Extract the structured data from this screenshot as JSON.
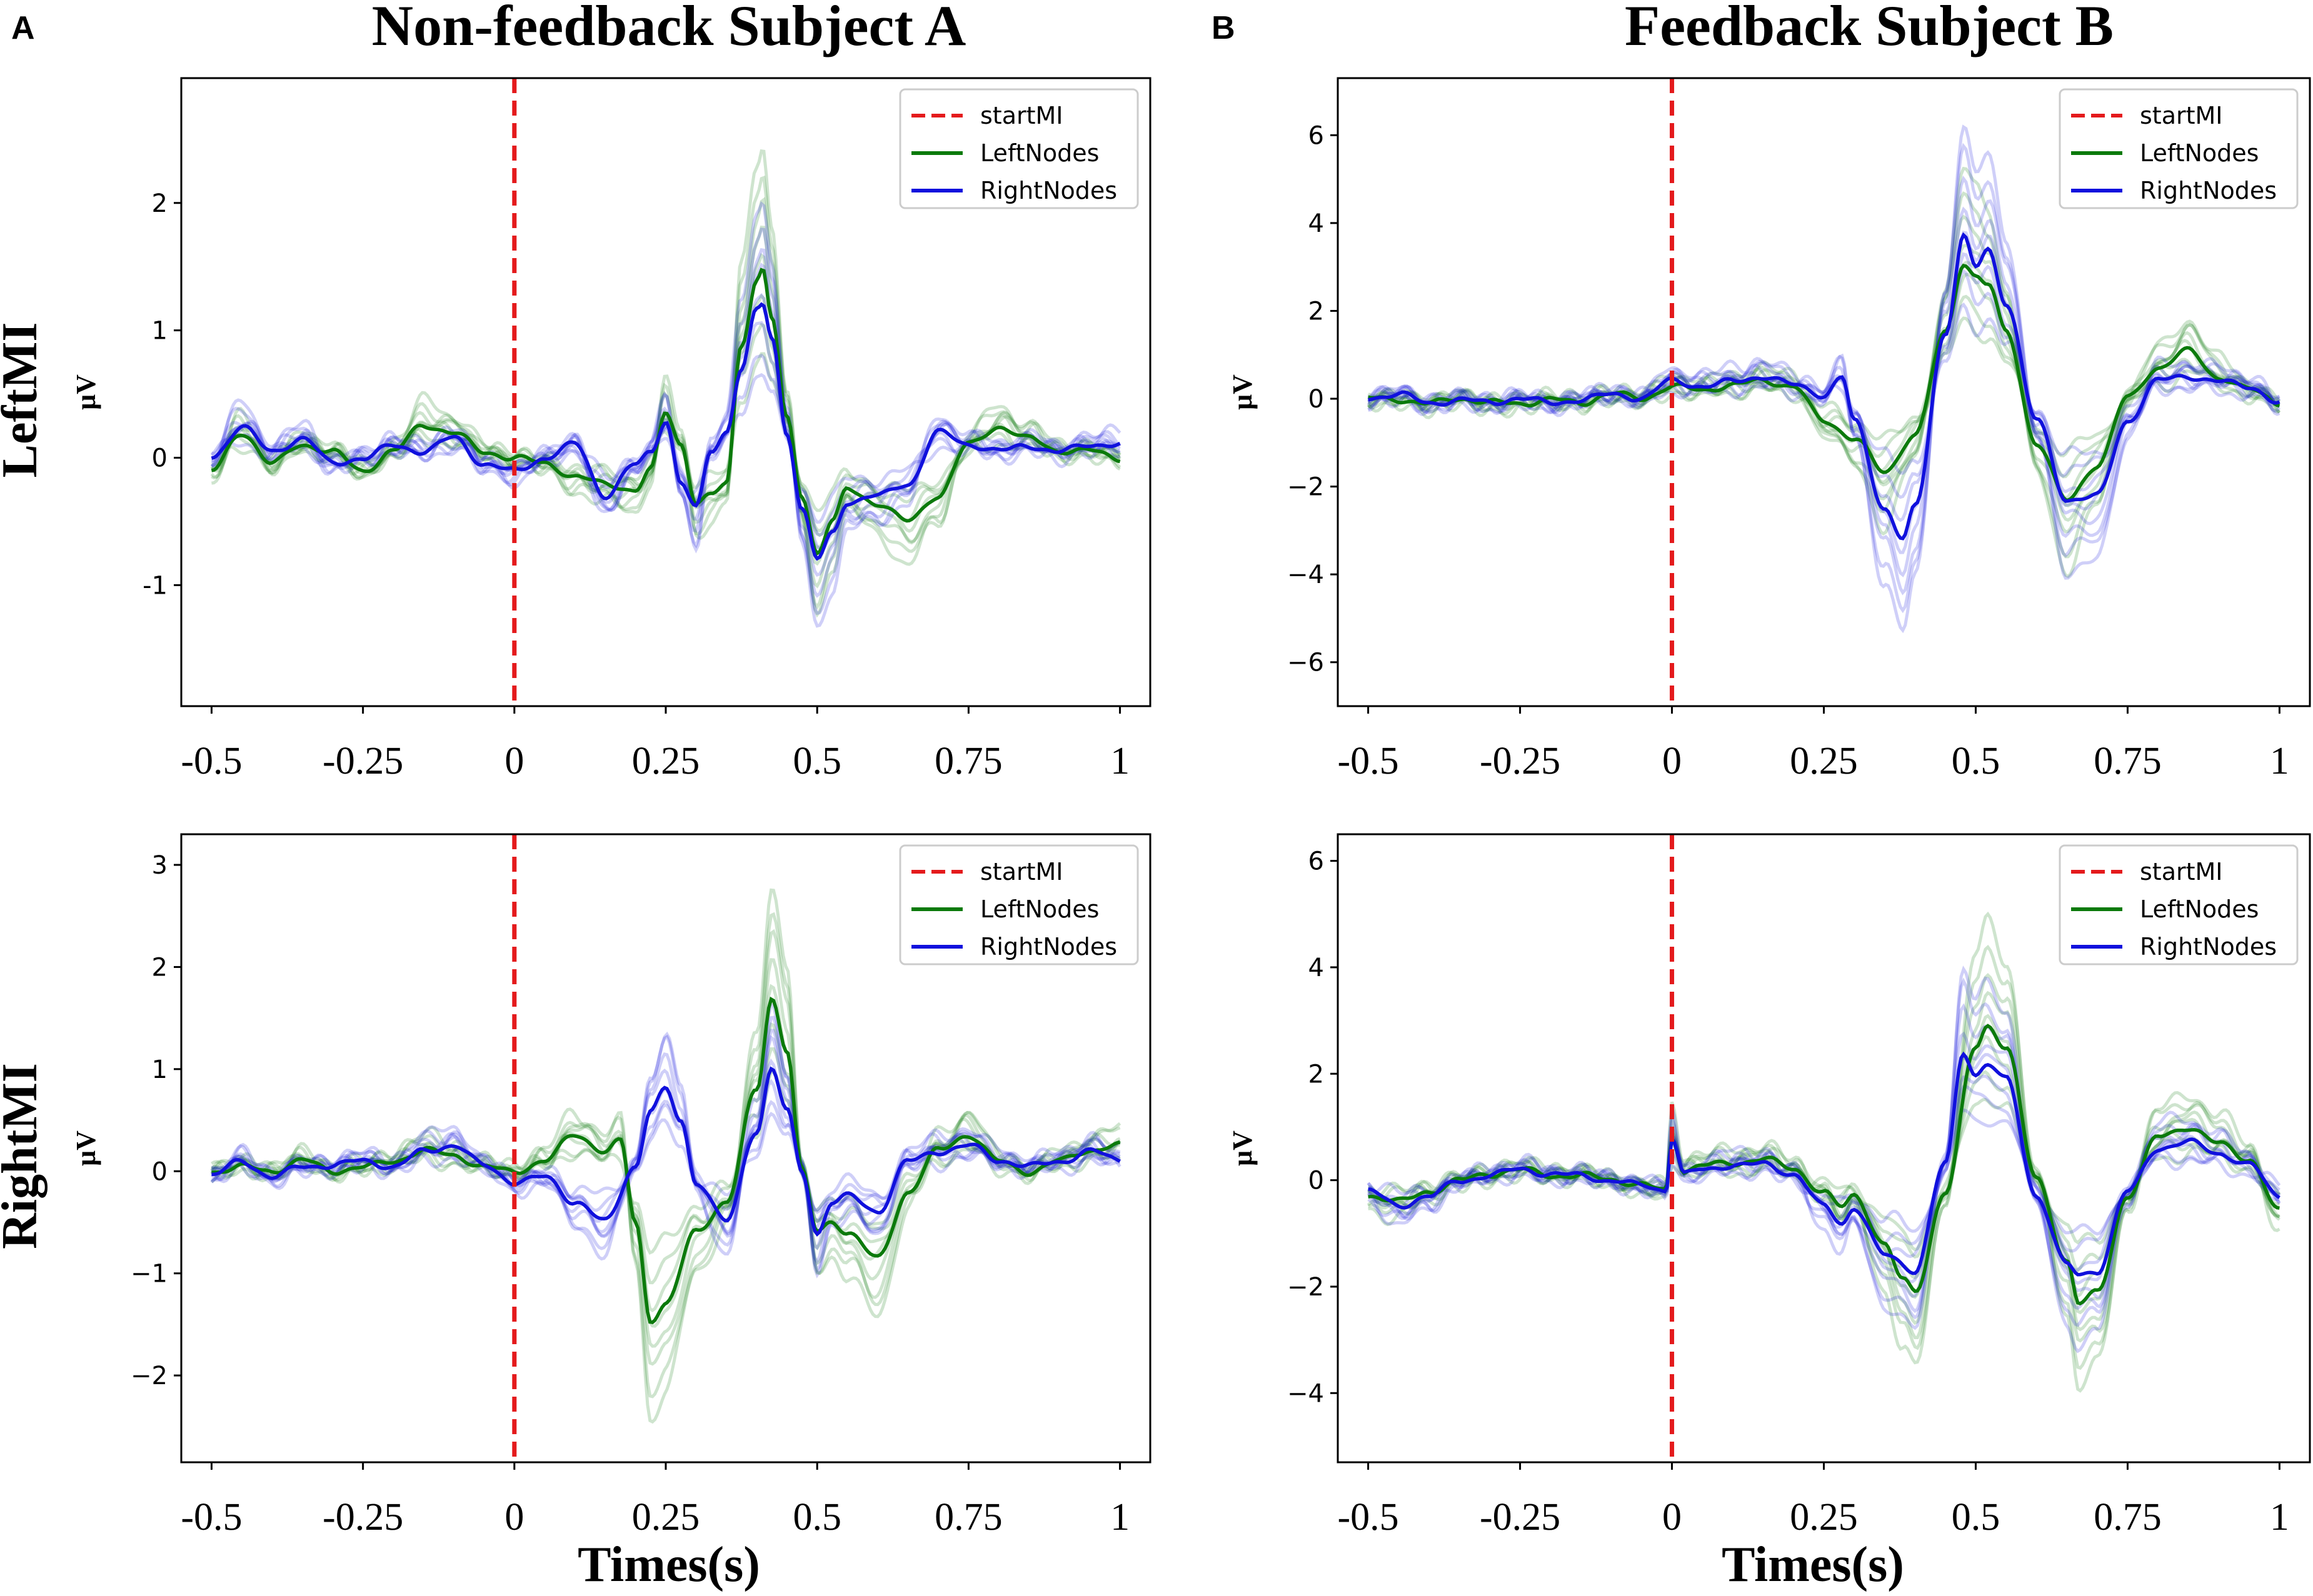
{
  "figure": {
    "panel_labels": [
      "A",
      "B"
    ],
    "column_titles": [
      "Non-feedback Subject A",
      "Feedback Subject B"
    ],
    "row_titles": [
      "LeftMI",
      "RightMI"
    ],
    "ylabel": "μV",
    "xlabel": "Times(s)",
    "colors": {
      "startMI": "#e41a1c",
      "left": "#0b7a0b",
      "right": "#1010dd"
    }
  },
  "chart_data": [
    {
      "type": "line",
      "panel": "A-LeftMI",
      "title": "Non-feedback Subject A",
      "row": "LeftMI",
      "xlabel": "",
      "ylabel": "μV",
      "xlim": [
        -0.55,
        1.05
      ],
      "ylim": [
        -1.95,
        2.98
      ],
      "xticks": [
        -0.5,
        -0.25,
        0,
        0.25,
        0.5,
        0.75,
        1
      ],
      "xtick_labels": [
        "-0.5",
        "-0.25",
        "0",
        "0.25",
        "0.5",
        "0.75",
        "1"
      ],
      "yticks": [
        -1,
        0,
        1,
        2
      ],
      "ytick_labels": [
        "-1",
        "0",
        "1",
        "2"
      ],
      "legend": [
        "startMI",
        "LeftNodes",
        "RightNodes"
      ],
      "legend_position": "top-right",
      "vline": {
        "x": 0,
        "name": "startMI"
      },
      "series": [
        {
          "name": "LeftNodes",
          "role": "mean",
          "color": "#0b7a0b",
          "x": [
            -0.5,
            -0.45,
            -0.4,
            -0.35,
            -0.3,
            -0.25,
            -0.2,
            -0.15,
            -0.1,
            -0.05,
            0,
            0.05,
            0.1,
            0.15,
            0.2,
            0.225,
            0.25,
            0.275,
            0.3,
            0.325,
            0.35,
            0.375,
            0.4,
            0.41,
            0.425,
            0.45,
            0.475,
            0.5,
            0.525,
            0.55,
            0.6,
            0.65,
            0.7,
            0.75,
            0.8,
            0.85,
            0.9,
            0.95,
            1
          ],
          "y": [
            -0.1,
            0.2,
            -0.05,
            0.1,
            0.05,
            -0.1,
            0.05,
            0.25,
            0.2,
            0.05,
            0,
            -0.05,
            -0.15,
            -0.2,
            -0.25,
            -0.1,
            0.35,
            0.1,
            -0.35,
            -0.3,
            -0.2,
            0.9,
            1.4,
            1.48,
            1.1,
            0.3,
            -0.3,
            -0.75,
            -0.5,
            -0.25,
            -0.35,
            -0.5,
            -0.3,
            0.1,
            0.25,
            0.15,
            0.05,
            0.05,
            0
          ]
        },
        {
          "name": "RightNodes",
          "role": "mean",
          "color": "#1010dd",
          "x": [
            -0.5,
            -0.45,
            -0.4,
            -0.35,
            -0.3,
            -0.25,
            -0.2,
            -0.15,
            -0.1,
            -0.05,
            0,
            0.05,
            0.1,
            0.15,
            0.2,
            0.225,
            0.25,
            0.275,
            0.3,
            0.325,
            0.35,
            0.375,
            0.4,
            0.41,
            0.425,
            0.45,
            0.475,
            0.5,
            0.525,
            0.55,
            0.6,
            0.65,
            0.7,
            0.75,
            0.8,
            0.85,
            0.9,
            0.95,
            1
          ],
          "y": [
            0,
            0.25,
            0.05,
            0.15,
            -0.05,
            0,
            0.1,
            0.05,
            0.15,
            -0.05,
            -0.1,
            0,
            0.1,
            -0.3,
            -0.05,
            0.05,
            0.3,
            -0.2,
            -0.4,
            0.05,
            0.2,
            0.7,
            1.15,
            1.2,
            0.95,
            0.2,
            -0.4,
            -0.8,
            -0.6,
            -0.35,
            -0.3,
            -0.2,
            0.2,
            0.1,
            0.05,
            0.1,
            0.05,
            0.1,
            0.1
          ]
        }
      ],
      "individual_traces": {
        "left": 8,
        "right": 8,
        "opacity": 0.2
      }
    },
    {
      "type": "line",
      "panel": "A-RightMI",
      "title": "Non-feedback Subject A",
      "row": "RightMI",
      "xlabel": "Times(s)",
      "ylabel": "μV",
      "xlim": [
        -0.55,
        1.05
      ],
      "ylim": [
        -2.85,
        3.3
      ],
      "xticks": [
        -0.5,
        -0.25,
        0,
        0.25,
        0.5,
        0.75,
        1
      ],
      "xtick_labels": [
        "-0.5",
        "-0.25",
        "0",
        "0.25",
        "0.5",
        "0.75",
        "1"
      ],
      "yticks": [
        -2,
        -1,
        0,
        1,
        2,
        3
      ],
      "ytick_labels": [
        "−2",
        "−1",
        "0",
        "1",
        "2",
        "3"
      ],
      "legend": [
        "startMI",
        "LeftNodes",
        "RightNodes"
      ],
      "legend_position": "top-right",
      "vline": {
        "x": 0,
        "name": "startMI"
      },
      "series": [
        {
          "name": "LeftNodes",
          "role": "mean",
          "color": "#0b7a0b",
          "x": [
            -0.5,
            -0.45,
            -0.4,
            -0.35,
            -0.3,
            -0.25,
            -0.2,
            -0.15,
            -0.1,
            -0.05,
            0,
            0.05,
            0.1,
            0.15,
            0.175,
            0.2,
            0.225,
            0.25,
            0.3,
            0.35,
            0.4,
            0.425,
            0.45,
            0.475,
            0.5,
            0.525,
            0.55,
            0.6,
            0.65,
            0.7,
            0.75,
            0.8,
            0.85,
            0.9,
            0.95,
            1
          ],
          "y": [
            0,
            0.05,
            0,
            0.1,
            0,
            0.05,
            0.1,
            0.2,
            0.15,
            0.05,
            0,
            0.1,
            0.35,
            0.2,
            0.3,
            -0.5,
            -1.45,
            -1.3,
            -0.6,
            -0.3,
            0.8,
            1.7,
            1.2,
            0,
            -0.6,
            -0.5,
            -0.6,
            -0.85,
            -0.2,
            0.2,
            0.35,
            0.1,
            0,
            0.1,
            0.2,
            0.25
          ]
        },
        {
          "name": "RightNodes",
          "role": "mean",
          "color": "#1010dd",
          "x": [
            -0.5,
            -0.45,
            -0.4,
            -0.35,
            -0.3,
            -0.25,
            -0.2,
            -0.15,
            -0.1,
            -0.05,
            0,
            0.05,
            0.1,
            0.15,
            0.2,
            0.225,
            0.25,
            0.275,
            0.3,
            0.35,
            0.4,
            0.425,
            0.45,
            0.475,
            0.5,
            0.525,
            0.55,
            0.6,
            0.65,
            0.7,
            0.75,
            0.8,
            0.85,
            0.9,
            0.95,
            1
          ],
          "y": [
            -0.05,
            0.1,
            -0.05,
            0.05,
            0.05,
            0.1,
            0.05,
            0.2,
            0.25,
            0.05,
            -0.1,
            -0.05,
            -0.3,
            -0.5,
            0.05,
            0.6,
            0.8,
            0.5,
            -0.1,
            -0.5,
            0.4,
            1,
            0.6,
            0,
            -0.6,
            -0.3,
            -0.25,
            -0.4,
            0.1,
            0.2,
            0.25,
            0.1,
            0.05,
            0.1,
            0.2,
            0.1
          ]
        }
      ],
      "individual_traces": {
        "left": 8,
        "right": 8,
        "opacity": 0.2
      }
    },
    {
      "type": "line",
      "panel": "B-LeftMI",
      "title": "Feedback Subject B",
      "row": "LeftMI",
      "xlabel": "",
      "ylabel": "μV",
      "xlim": [
        -0.55,
        1.05
      ],
      "ylim": [
        -7.0,
        7.3
      ],
      "xticks": [
        -0.5,
        -0.25,
        0,
        0.25,
        0.5,
        0.75,
        1
      ],
      "xtick_labels": [
        "-0.5",
        "-0.25",
        "0",
        "0.25",
        "0.5",
        "0.75",
        "1"
      ],
      "yticks": [
        -6,
        -4,
        -2,
        0,
        2,
        4,
        6
      ],
      "ytick_labels": [
        "−6",
        "−4",
        "−2",
        "0",
        "2",
        "4",
        "6"
      ],
      "legend": [
        "startMI",
        "LeftNodes",
        "RightNodes"
      ],
      "legend_position": "top-right",
      "vline": {
        "x": 0,
        "name": "startMI"
      },
      "series": [
        {
          "name": "LeftNodes",
          "role": "mean",
          "color": "#0b7a0b",
          "x": [
            -0.5,
            -0.45,
            -0.4,
            -0.35,
            -0.3,
            -0.25,
            -0.2,
            -0.15,
            -0.1,
            -0.05,
            0,
            0.05,
            0.1,
            0.15,
            0.2,
            0.25,
            0.3,
            0.35,
            0.4,
            0.45,
            0.48,
            0.5,
            0.52,
            0.55,
            0.6,
            0.65,
            0.7,
            0.75,
            0.8,
            0.85,
            0.9,
            0.95,
            1
          ],
          "y": [
            0,
            0,
            -0.1,
            0,
            -0.1,
            -0.1,
            0,
            -0.1,
            0.1,
            0,
            0.3,
            0.2,
            0.3,
            0.4,
            0.3,
            -0.5,
            -0.9,
            -1.7,
            -0.8,
            1.5,
            3.1,
            2.8,
            2.6,
            1.5,
            -1,
            -2.3,
            -1.5,
            0,
            0.7,
            1.1,
            0.5,
            0.2,
            -0.1
          ]
        },
        {
          "name": "RightNodes",
          "role": "mean",
          "color": "#1010dd",
          "x": [
            -0.5,
            -0.45,
            -0.4,
            -0.35,
            -0.3,
            -0.25,
            -0.2,
            -0.15,
            -0.1,
            -0.05,
            0,
            0.05,
            0.1,
            0.15,
            0.2,
            0.25,
            0.28,
            0.3,
            0.35,
            0.38,
            0.4,
            0.45,
            0.48,
            0.5,
            0.52,
            0.55,
            0.6,
            0.65,
            0.7,
            0.75,
            0.8,
            0.85,
            0.9,
            0.95,
            1
          ],
          "y": [
            0,
            0.1,
            -0.1,
            0,
            -0.1,
            0,
            -0.1,
            0,
            0.1,
            0,
            0.4,
            0.3,
            0.4,
            0.5,
            0.3,
            0.1,
            0.5,
            -0.5,
            -2.5,
            -3.2,
            -2.5,
            1.5,
            3.7,
            3,
            3.4,
            2.2,
            -0.5,
            -2.3,
            -2.2,
            -0.5,
            0.4,
            0.5,
            0.4,
            0.3,
            -0.1
          ]
        }
      ],
      "individual_traces": {
        "left": 8,
        "right": 8,
        "opacity": 0.2
      }
    },
    {
      "type": "line",
      "panel": "B-RightMI",
      "title": "Feedback Subject B",
      "row": "RightMI",
      "xlabel": "Times(s)",
      "ylabel": "μV",
      "xlim": [
        -0.55,
        1.05
      ],
      "ylim": [
        -5.3,
        6.5
      ],
      "xticks": [
        -0.5,
        -0.25,
        0,
        0.25,
        0.5,
        0.75,
        1
      ],
      "xtick_labels": [
        "-0.5",
        "-0.25",
        "0",
        "0.25",
        "0.5",
        "0.75",
        "1"
      ],
      "yticks": [
        -4,
        -2,
        0,
        2,
        4,
        6
      ],
      "ytick_labels": [
        "−4",
        "−2",
        "0",
        "2",
        "4",
        "6"
      ],
      "legend": [
        "startMI",
        "LeftNodes",
        "RightNodes"
      ],
      "legend_position": "top-right",
      "vline": {
        "x": 0,
        "name": "startMI"
      },
      "series": [
        {
          "name": "LeftNodes",
          "role": "mean",
          "color": "#0b7a0b",
          "x": [
            -0.5,
            -0.45,
            -0.4,
            -0.35,
            -0.3,
            -0.25,
            -0.2,
            -0.15,
            -0.1,
            -0.05,
            -0.01,
            0,
            0.02,
            0.05,
            0.1,
            0.15,
            0.2,
            0.25,
            0.28,
            0.3,
            0.35,
            0.38,
            0.4,
            0.45,
            0.5,
            0.52,
            0.55,
            0.6,
            0.65,
            0.67,
            0.7,
            0.75,
            0.8,
            0.85,
            0.9,
            0.95,
            1
          ],
          "y": [
            -0.3,
            -0.4,
            -0.2,
            0,
            0.1,
            0.2,
            0.1,
            0.1,
            0,
            -0.1,
            -0.2,
            0.8,
            0.2,
            0.3,
            0.3,
            0.4,
            0.2,
            -0.2,
            -0.5,
            -0.3,
            -1.2,
            -1.9,
            -2.1,
            -0.2,
            2.5,
            2.9,
            2.5,
            0,
            -1.5,
            -2.3,
            -2.1,
            -0.3,
            0.8,
            1,
            0.7,
            0.4,
            -0.6
          ]
        },
        {
          "name": "RightNodes",
          "role": "mean",
          "color": "#1010dd",
          "x": [
            -0.5,
            -0.45,
            -0.4,
            -0.35,
            -0.3,
            -0.25,
            -0.2,
            -0.15,
            -0.1,
            -0.05,
            -0.01,
            0,
            0.02,
            0.05,
            0.1,
            0.15,
            0.2,
            0.25,
            0.28,
            0.3,
            0.35,
            0.4,
            0.45,
            0.48,
            0.5,
            0.52,
            0.55,
            0.6,
            0.65,
            0.67,
            0.7,
            0.75,
            0.8,
            0.85,
            0.9,
            0.95,
            1
          ],
          "y": [
            -0.2,
            -0.5,
            -0.3,
            0,
            0.1,
            0.2,
            0.1,
            0.1,
            0,
            -0.1,
            -0.2,
            0.8,
            0.1,
            0.2,
            0.3,
            0.3,
            0.1,
            -0.5,
            -0.8,
            -0.5,
            -1.4,
            -1.7,
            0.3,
            2.4,
            2,
            2.2,
            1.9,
            -0.3,
            -1.6,
            -1.8,
            -1.7,
            -0.2,
            0.6,
            0.7,
            0.5,
            0.3,
            -0.3
          ]
        }
      ],
      "individual_traces": {
        "left": 8,
        "right": 8,
        "opacity": 0.2
      }
    }
  ]
}
